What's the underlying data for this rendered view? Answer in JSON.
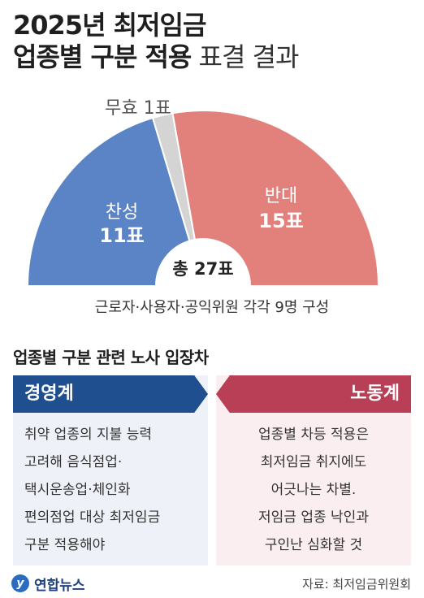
{
  "title": {
    "line1": "2025년 최저임금",
    "line2_bold": "업종별 구분 적용",
    "line2_thin": " 표결 결과"
  },
  "chart_data": {
    "type": "pie",
    "half_donut": true,
    "categories": [
      "찬성",
      "무효",
      "반대"
    ],
    "values": [
      11,
      1,
      15
    ],
    "labels": [
      {
        "name": "찬성",
        "value_text": "11표"
      },
      {
        "name": "무효",
        "value_text": "1표"
      },
      {
        "name": "반대",
        "value_text": "15표"
      }
    ],
    "colors": [
      "#5b84c6",
      "#d4d4d4",
      "#e2807c"
    ],
    "total_prefix": "총",
    "total_value": "27표",
    "caption": "근로자·사용자·공익위원 각각 9명 구성"
  },
  "section": {
    "title": "업종별 구분 관련 노사 입장차"
  },
  "panels": {
    "left": {
      "label": "경영계",
      "color": "#1f4f8f",
      "lines": [
        "취약 업종의 지불 능력",
        "고려해 음식점업·",
        "택시운송업·체인화",
        "편의점업 대상 최저임금",
        "구분 적용해야"
      ]
    },
    "right": {
      "label": "노동계",
      "color": "#b83f55",
      "lines": [
        "업종별 차등 적용은",
        "최저임금 취지에도",
        "어긋나는 차별.",
        "저임금 업종 낙인과",
        "구인난 심화할 것"
      ]
    }
  },
  "footer": {
    "logo_text": "연합뉴스",
    "source": "자료: 최저임금위원회"
  }
}
